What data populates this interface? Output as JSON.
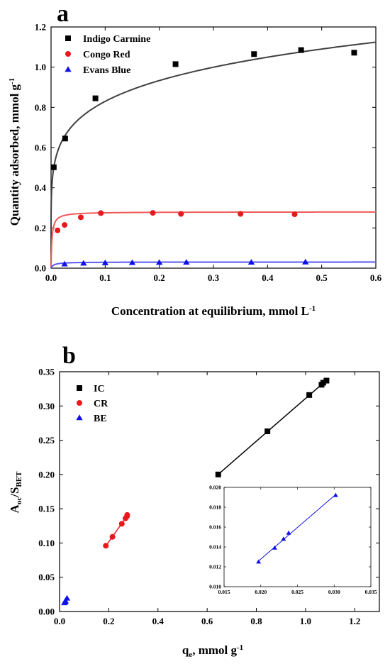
{
  "panel_a_letter": "a",
  "panel_b_letter": "b",
  "chart_data": [
    {
      "type": "scatter",
      "xlabel_main": "Concentration at equilibrium, mmol L",
      "xlabel_sup": "-1",
      "ylabel_main": "Quantity adsorbed, mmol g",
      "ylabel_sup": "-1",
      "xlim": [
        0.0,
        0.6
      ],
      "ylim": [
        0.0,
        1.2
      ],
      "xticks": [
        0.0,
        0.1,
        0.2,
        0.3,
        0.4,
        0.5,
        0.6
      ],
      "yticks": [
        0.0,
        0.2,
        0.4,
        0.6,
        0.8,
        1.0,
        1.2
      ],
      "xtick_labels": [
        "0.0",
        "0.1",
        "0.2",
        "0.3",
        "0.4",
        "0.5",
        "0.6"
      ],
      "ytick_labels": [
        "0.0",
        "0.2",
        "0.4",
        "0.6",
        "0.8",
        "1.0",
        "1.2"
      ],
      "legend_position": "top-left",
      "series": [
        {
          "name": "Indigo Carmine",
          "marker": "square",
          "color": "#000000",
          "fit_color": "#404040",
          "fit_model": "freundlich",
          "fit_params": {
            "K": 1.226,
            "n": 5.9
          },
          "x": [
            0.005,
            0.026,
            0.082,
            0.23,
            0.375,
            0.462,
            0.56
          ],
          "y": [
            0.502,
            0.645,
            0.845,
            1.015,
            1.065,
            1.085,
            1.072
          ]
        },
        {
          "name": "Congo Red",
          "marker": "circle",
          "color": "#e8191c",
          "fit_color": "#ef5a5a",
          "fit_model": "langmuir",
          "fit_params": {
            "qmax": 0.28,
            "K": 600
          },
          "x": [
            0.012,
            0.025,
            0.055,
            0.092,
            0.188,
            0.24,
            0.35,
            0.45
          ],
          "y": [
            0.188,
            0.215,
            0.253,
            0.274,
            0.275,
            0.27,
            0.27,
            0.268
          ]
        },
        {
          "name": "Evans Blue",
          "marker": "triangle",
          "color": "#1010e8",
          "fit_color": "#5a5af0",
          "fit_model": "langmuir",
          "fit_params": {
            "qmax": 0.0305,
            "K": 200
          },
          "x": [
            0.025,
            0.06,
            0.1,
            0.15,
            0.2,
            0.25,
            0.37,
            0.47
          ],
          "y": [
            0.02,
            0.024,
            0.026,
            0.027,
            0.028,
            0.029,
            0.029,
            0.03
          ]
        }
      ]
    },
    {
      "type": "scatter",
      "xlabel_main": "q",
      "xlabel_sub": "e",
      "xlabel_tail": ", mmol g",
      "xlabel_sup": "-1",
      "ylabel_a": "A",
      "ylabel_a_sub": "oc",
      "ylabel_slash": "/S",
      "ylabel_s_sub": "BET",
      "xlim": [
        0.0,
        1.3
      ],
      "ylim": [
        0.0,
        0.35
      ],
      "xticks": [
        0.0,
        0.2,
        0.4,
        0.6,
        0.8,
        1.0,
        1.2
      ],
      "yticks": [
        0.0,
        0.05,
        0.1,
        0.15,
        0.2,
        0.25,
        0.3,
        0.35
      ],
      "xtick_labels": [
        "0.0",
        "0.2",
        "0.4",
        "0.6",
        "0.8",
        "1.0",
        "1.2"
      ],
      "ytick_labels": [
        "0.00",
        "0.05",
        "0.10",
        "0.15",
        "0.20",
        "0.25",
        "0.30",
        "0.35"
      ],
      "legend_position": "top-left",
      "series": [
        {
          "name": "IC",
          "marker": "square",
          "color": "#000000",
          "x": [
            0.645,
            0.845,
            1.015,
            1.065,
            1.072,
            1.085
          ],
          "y": [
            0.2,
            0.263,
            0.316,
            0.331,
            0.334,
            0.337
          ]
        },
        {
          "name": "CR",
          "marker": "circle",
          "color": "#e8191c",
          "x": [
            0.188,
            0.215,
            0.253,
            0.268,
            0.274,
            0.275
          ],
          "y": [
            0.096,
            0.109,
            0.128,
            0.136,
            0.139,
            0.141
          ]
        },
        {
          "name": "BE",
          "marker": "triangle",
          "color": "#1010e8",
          "x": [
            0.0197,
            0.0219,
            0.0231,
            0.0238,
            0.0302
          ],
          "y": [
            0.0125,
            0.0139,
            0.0148,
            0.0154,
            0.0192
          ]
        }
      ],
      "inset": {
        "xlim": [
          0.015,
          0.035
        ],
        "ylim": [
          0.01,
          0.02
        ],
        "xticks": [
          0.015,
          0.02,
          0.025,
          0.03,
          0.035
        ],
        "yticks": [
          0.01,
          0.012,
          0.014,
          0.016,
          0.018,
          0.02
        ],
        "xtick_labels": [
          "0.015",
          "0.020",
          "0.025",
          "0.030",
          "0.035"
        ],
        "ytick_labels": [
          "0.010",
          "0.012",
          "0.014",
          "0.016",
          "0.018",
          "0.020"
        ],
        "series_ref": "BE"
      }
    }
  ]
}
